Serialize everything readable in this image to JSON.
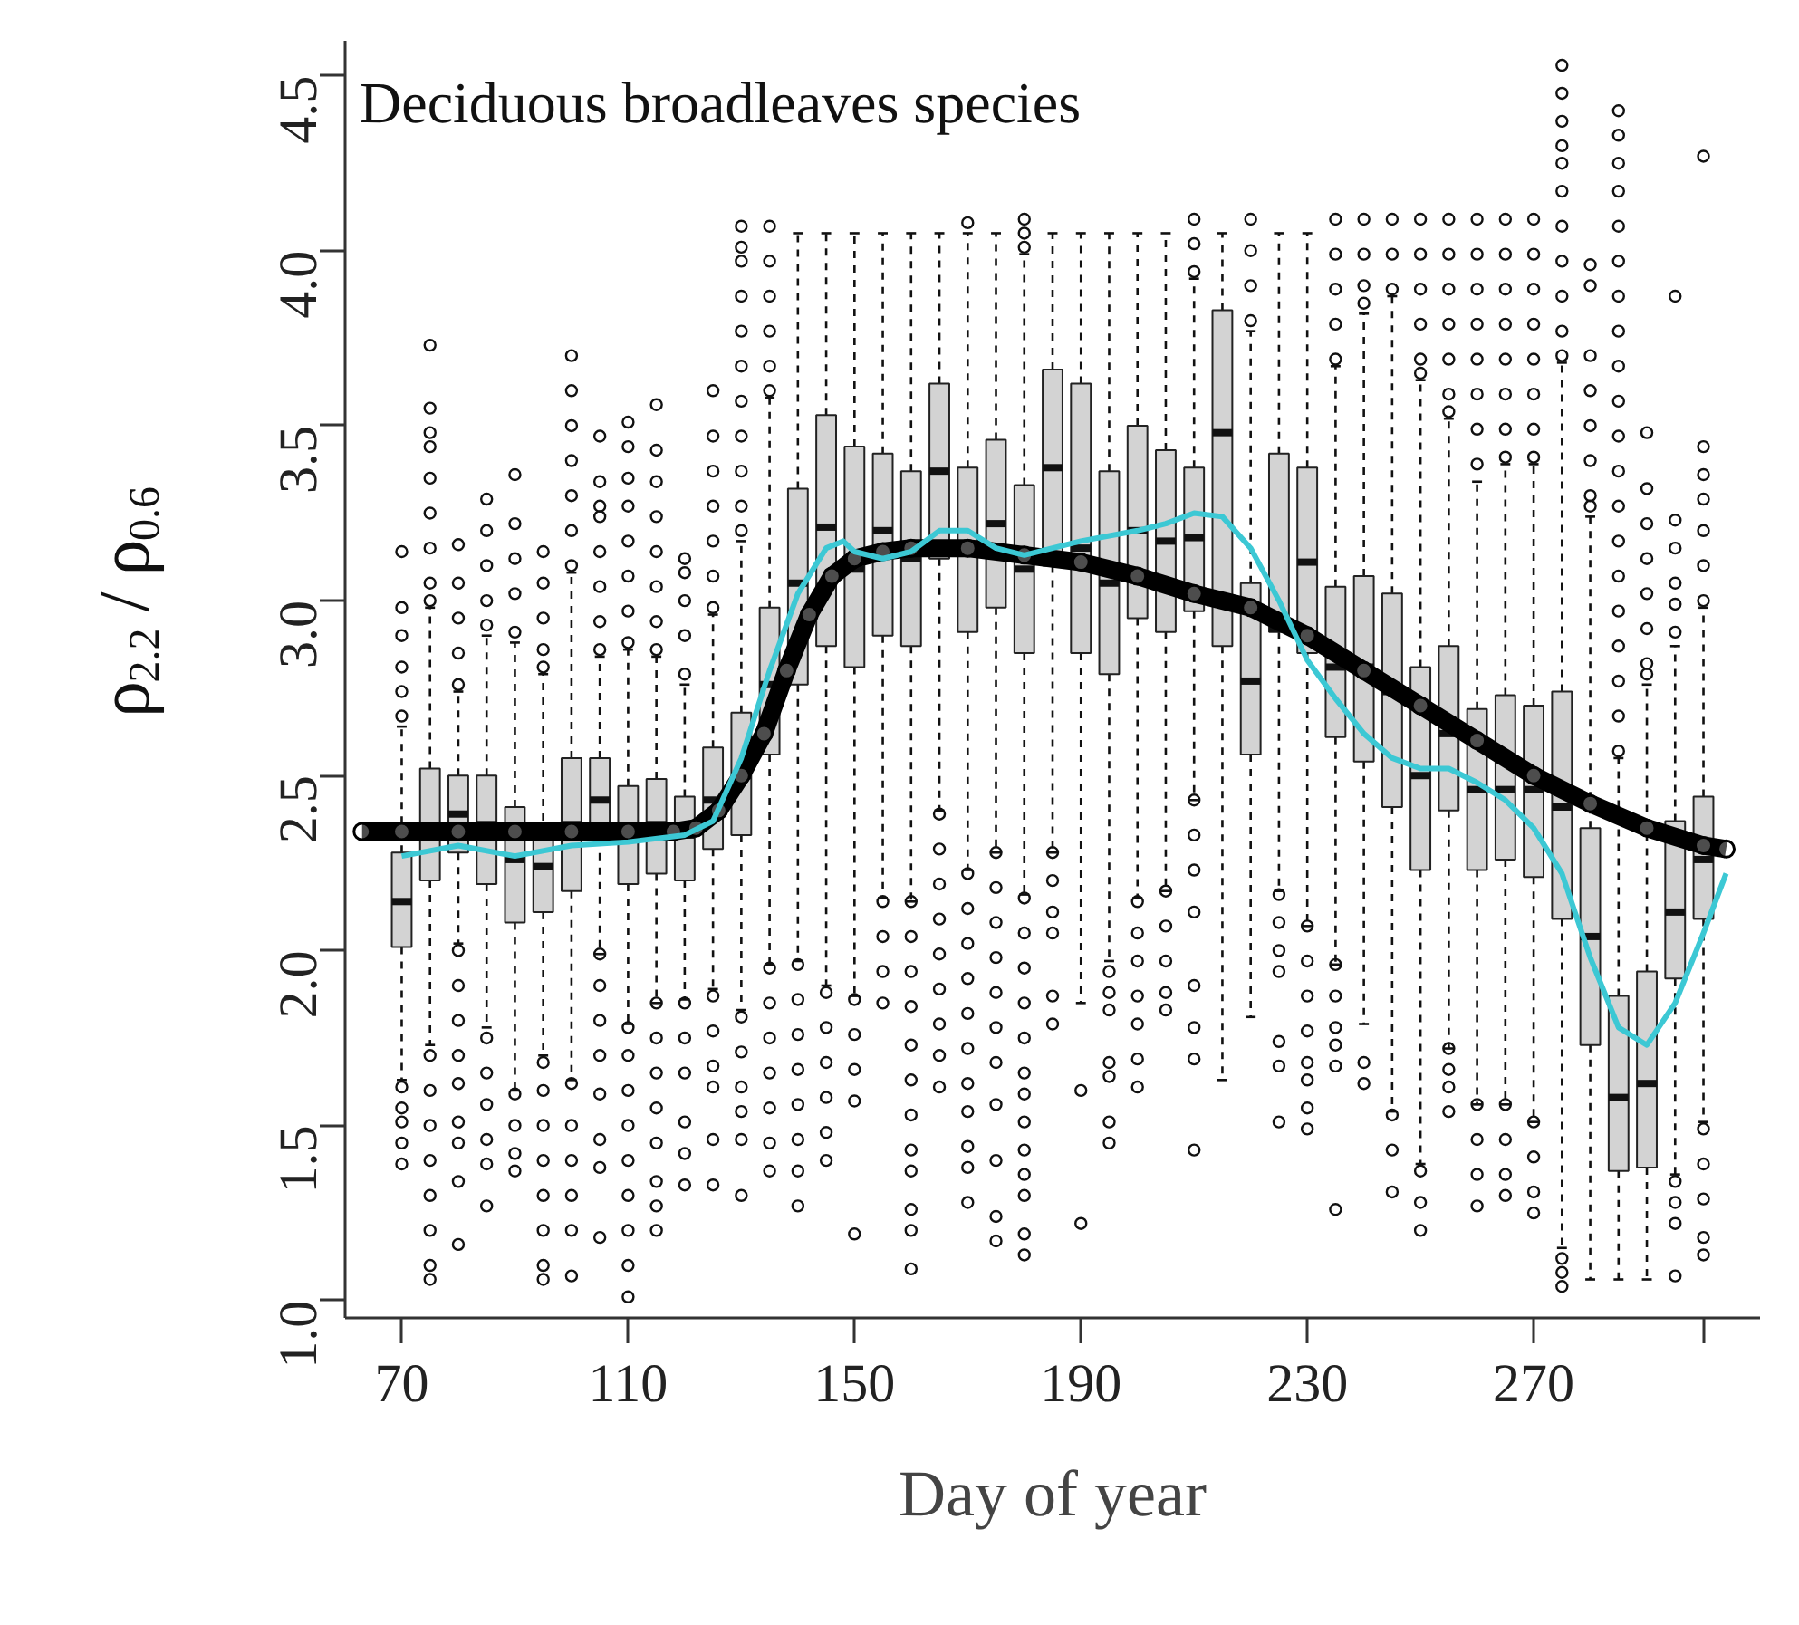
{
  "chart_data": {
    "type": "box",
    "title": "Deciduous broadleaves species",
    "xlabel": "Day of year",
    "ylabel": "ρ$_{2.2}$ / ρ$_{0.6}$",
    "xlim": [
      60,
      310
    ],
    "ylim": [
      0.95,
      4.6
    ],
    "xticks": [
      70,
      110,
      150,
      190,
      230,
      270,
      {
        "value": 300,
        "label": null
      }
    ],
    "yticks": [
      {
        "value": 1.0,
        "label": "1.0"
      },
      1.5,
      {
        "value": 2.0,
        "label": "2.0"
      },
      2.5,
      {
        "value": 3.0,
        "label": "3.0"
      },
      3.5,
      {
        "value": 4.0,
        "label": "4.0"
      },
      4.5
    ],
    "series": [
      {
        "color": "#d3d3d3",
        "x": [
          70,
          75,
          80,
          85,
          90,
          95,
          100,
          105,
          110,
          115,
          120,
          125,
          130,
          135,
          140,
          145,
          150,
          155,
          160,
          165,
          170,
          175,
          180,
          185,
          190,
          195,
          200,
          205,
          210,
          215,
          220,
          225,
          230,
          235,
          240,
          245,
          250,
          255,
          260,
          265,
          270,
          275,
          280,
          285,
          290,
          295,
          300
        ],
        "boxes": [
          {
            "low": 1.63,
            "q1": 2.01,
            "median": 2.14,
            "q3": 2.28,
            "high": 2.64,
            "outliers": [
              3.14,
              2.98,
              2.9,
              2.81,
              2.74,
              2.67,
              1.61,
              1.55,
              1.51,
              1.45,
              1.39
            ]
          },
          {
            "low": 1.73,
            "q1": 2.2,
            "median": 2.33,
            "q3": 2.52,
            "high": 2.98,
            "outliers": [
              3.73,
              3.55,
              3.48,
              3.44,
              3.35,
              3.25,
              3.15,
              3.05,
              3.0,
              1.7,
              1.6,
              1.5,
              1.4,
              1.3,
              1.2,
              1.1,
              1.06
            ]
          },
          {
            "low": 2.02,
            "q1": 2.28,
            "median": 2.39,
            "q3": 2.5,
            "high": 2.74,
            "outliers": [
              3.16,
              3.05,
              2.95,
              2.85,
              2.76,
              2.0,
              1.9,
              1.8,
              1.7,
              1.62,
              1.51,
              1.45,
              1.34,
              1.16
            ]
          },
          {
            "low": 1.78,
            "q1": 2.19,
            "median": 2.36,
            "q3": 2.5,
            "high": 2.9,
            "outliers": [
              3.29,
              3.2,
              3.1,
              3.0,
              2.93,
              1.75,
              1.65,
              1.56,
              1.46,
              1.39,
              1.27
            ]
          },
          {
            "low": 1.6,
            "q1": 2.08,
            "median": 2.26,
            "q3": 2.41,
            "high": 2.88,
            "outliers": [
              3.36,
              3.22,
              3.12,
              3.02,
              2.91,
              1.59,
              1.5,
              1.42,
              1.37
            ]
          },
          {
            "low": 1.7,
            "q1": 2.11,
            "median": 2.24,
            "q3": 2.33,
            "high": 2.79,
            "outliers": [
              3.14,
              3.05,
              2.95,
              2.86,
              2.81,
              1.68,
              1.6,
              1.5,
              1.4,
              1.3,
              1.2,
              1.1,
              1.06
            ]
          },
          {
            "low": 1.63,
            "q1": 2.17,
            "median": 2.36,
            "q3": 2.55,
            "high": 3.08,
            "outliers": [
              3.7,
              3.6,
              3.5,
              3.4,
              3.3,
              3.2,
              3.1,
              1.62,
              1.5,
              1.4,
              1.3,
              1.2,
              1.07
            ]
          },
          {
            "low": 1.99,
            "q1": 2.32,
            "median": 2.43,
            "q3": 2.55,
            "high": 2.84,
            "outliers": [
              3.47,
              3.34,
              3.27,
              3.24,
              3.14,
              3.04,
              2.94,
              2.86,
              1.99,
              1.9,
              1.8,
              1.7,
              1.59,
              1.46,
              1.38,
              1.18
            ]
          },
          {
            "low": 1.79,
            "q1": 2.19,
            "median": 2.33,
            "q3": 2.47,
            "high": 2.86,
            "outliers": [
              3.51,
              3.44,
              3.35,
              3.27,
              3.17,
              3.07,
              2.97,
              2.88,
              1.78,
              1.7,
              1.6,
              1.5,
              1.4,
              1.3,
              1.2,
              1.1,
              1.01
            ]
          },
          {
            "low": 1.85,
            "q1": 2.22,
            "median": 2.36,
            "q3": 2.49,
            "high": 2.84,
            "outliers": [
              3.56,
              3.43,
              3.34,
              3.24,
              3.14,
              3.04,
              2.94,
              2.86,
              1.85,
              1.75,
              1.65,
              1.55,
              1.45,
              1.34,
              1.27,
              1.2
            ]
          },
          {
            "low": 1.86,
            "q1": 2.2,
            "median": 2.33,
            "q3": 2.44,
            "high": 2.76,
            "outliers": [
              3.12,
              3.08,
              3.0,
              2.9,
              2.79,
              1.85,
              1.75,
              1.65,
              1.51,
              1.42,
              1.33
            ]
          },
          {
            "low": 1.89,
            "q1": 2.29,
            "median": 2.43,
            "q3": 2.58,
            "high": 2.96,
            "outliers": [
              3.6,
              3.47,
              3.37,
              3.27,
              3.17,
              3.07,
              2.98,
              1.87,
              1.77,
              1.67,
              1.61,
              1.46,
              1.33
            ]
          },
          {
            "low": 1.83,
            "q1": 2.33,
            "median": 2.5,
            "q3": 2.68,
            "high": 3.17,
            "outliers": [
              4.07,
              4.01,
              3.97,
              3.87,
              3.77,
              3.67,
              3.57,
              3.47,
              3.37,
              3.27,
              3.2,
              1.81,
              1.71,
              1.61,
              1.54,
              1.46,
              1.3
            ]
          },
          {
            "low": 1.96,
            "q1": 2.56,
            "median": 2.76,
            "q3": 2.98,
            "high": 3.58,
            "outliers": [
              4.07,
              3.97,
              3.87,
              3.77,
              3.67,
              3.6,
              1.95,
              1.85,
              1.75,
              1.65,
              1.55,
              1.45,
              1.37
            ]
          },
          {
            "low": 1.97,
            "q1": 2.76,
            "median": 3.05,
            "q3": 3.32,
            "high": 4.05,
            "outliers": [
              1.96,
              1.86,
              1.76,
              1.66,
              1.56,
              1.46,
              1.37,
              1.27
            ]
          },
          {
            "low": 1.9,
            "q1": 2.87,
            "median": 3.21,
            "q3": 3.53,
            "high": 4.05,
            "outliers": [
              1.88,
              1.78,
              1.68,
              1.58,
              1.48,
              1.4
            ]
          },
          {
            "low": 1.87,
            "q1": 2.81,
            "median": 3.09,
            "q3": 3.44,
            "high": 4.05,
            "outliers": [
              1.86,
              1.76,
              1.66,
              1.57,
              1.19
            ]
          },
          {
            "low": 2.15,
            "q1": 2.9,
            "median": 3.2,
            "q3": 3.42,
            "high": 4.05,
            "outliers": [
              2.14,
              2.04,
              1.94,
              1.85
            ]
          },
          {
            "low": 2.14,
            "q1": 2.87,
            "median": 3.12,
            "q3": 3.37,
            "high": 4.05,
            "outliers": [
              2.14,
              2.04,
              1.94,
              1.84,
              1.73,
              1.63,
              1.53,
              1.43,
              1.37,
              1.26,
              1.2,
              1.09
            ]
          },
          {
            "low": 2.4,
            "q1": 3.12,
            "median": 3.37,
            "q3": 3.62,
            "high": 4.05,
            "outliers": [
              2.39,
              2.29,
              2.19,
              2.09,
              1.99,
              1.89,
              1.79,
              1.7,
              1.61
            ]
          },
          {
            "low": 2.23,
            "q1": 2.91,
            "median": 3.15,
            "q3": 3.38,
            "high": 4.05,
            "outliers": [
              4.08,
              2.22,
              2.12,
              2.02,
              1.92,
              1.82,
              1.72,
              1.62,
              1.54,
              1.44,
              1.38,
              1.28
            ]
          },
          {
            "low": 2.28,
            "q1": 2.98,
            "median": 3.22,
            "q3": 3.46,
            "high": 4.05,
            "outliers": [
              2.28,
              2.18,
              2.08,
              1.98,
              1.88,
              1.78,
              1.68,
              1.56,
              1.4,
              1.24,
              1.17
            ]
          },
          {
            "low": 2.16,
            "q1": 2.85,
            "median": 3.09,
            "q3": 3.33,
            "high": 3.99,
            "outliers": [
              4.09,
              4.05,
              4.01,
              2.15,
              2.05,
              1.95,
              1.85,
              1.75,
              1.65,
              1.59,
              1.51,
              1.43,
              1.36,
              1.3,
              1.19,
              1.13
            ]
          },
          {
            "low": 2.28,
            "q1": 3.1,
            "median": 3.38,
            "q3": 3.66,
            "high": 4.05,
            "outliers": [
              2.28,
              2.2,
              2.11,
              2.05,
              1.87,
              1.79
            ]
          },
          {
            "low": 1.85,
            "q1": 2.85,
            "median": 3.15,
            "q3": 3.62,
            "high": 4.05,
            "outliers": [
              1.6,
              1.22
            ]
          },
          {
            "low": 1.97,
            "q1": 2.79,
            "median": 3.05,
            "q3": 3.37,
            "high": 4.05,
            "outliers": [
              1.94,
              1.88,
              1.83,
              1.68,
              1.64,
              1.51,
              1.45
            ]
          },
          {
            "low": 2.15,
            "q1": 2.95,
            "median": 3.2,
            "q3": 3.5,
            "high": 4.05,
            "outliers": [
              2.14,
              2.05,
              1.97,
              1.87,
              1.79,
              1.69,
              1.61
            ]
          },
          {
            "low": 2.17,
            "q1": 2.91,
            "median": 3.17,
            "q3": 3.43,
            "high": 4.05,
            "outliers": [
              2.17,
              2.07,
              1.97,
              1.88,
              1.83
            ]
          },
          {
            "low": 2.43,
            "q1": 2.97,
            "median": 3.18,
            "q3": 3.38,
            "high": 3.92,
            "outliers": [
              4.09,
              4.02,
              3.94,
              2.43,
              2.33,
              2.23,
              2.11,
              1.9,
              1.78,
              1.69,
              1.43
            ]
          },
          {
            "low": 1.63,
            "q1": 2.87,
            "median": 3.48,
            "q3": 3.83,
            "high": 4.05
          },
          {
            "low": 1.81,
            "q1": 2.56,
            "median": 2.77,
            "q3": 3.05,
            "high": 3.77,
            "outliers": [
              4.09,
              4.0,
              3.9,
              3.8
            ]
          },
          {
            "low": 2.17,
            "q1": 2.91,
            "median": 2.92,
            "q3": 3.42,
            "high": 4.05,
            "outliers": [
              2.16,
              2.08,
              2.0,
              1.94,
              1.74,
              1.67,
              1.51
            ]
          },
          {
            "low": 2.07,
            "q1": 2.85,
            "median": 3.11,
            "q3": 3.38,
            "high": 4.05,
            "outliers": [
              2.07,
              1.97,
              1.87,
              1.77,
              1.68,
              1.63,
              1.55,
              1.49
            ]
          },
          {
            "low": 1.96,
            "q1": 2.61,
            "median": 2.81,
            "q3": 3.04,
            "high": 3.67,
            "outliers": [
              4.09,
              3.99,
              3.89,
              3.79,
              3.69,
              1.96,
              1.87,
              1.78,
              1.73,
              1.67,
              1.26
            ]
          },
          {
            "low": 1.79,
            "q1": 2.54,
            "median": 2.81,
            "q3": 3.07,
            "high": 3.82,
            "outliers": [
              4.09,
              3.99,
              3.9,
              3.85,
              1.68,
              1.62
            ]
          },
          {
            "low": 1.54,
            "q1": 2.41,
            "median": 2.74,
            "q3": 3.02,
            "high": 3.87,
            "outliers": [
              4.09,
              3.99,
              3.89,
              1.53,
              1.43,
              1.31
            ]
          },
          {
            "low": 1.39,
            "q1": 2.23,
            "median": 2.5,
            "q3": 2.81,
            "high": 3.63,
            "outliers": [
              4.09,
              3.99,
              3.89,
              3.79,
              3.69,
              3.65,
              1.37,
              1.28,
              1.2
            ]
          },
          {
            "low": 1.72,
            "q1": 2.4,
            "median": 2.62,
            "q3": 2.87,
            "high": 3.52,
            "outliers": [
              4.09,
              3.99,
              3.89,
              3.79,
              3.69,
              3.59,
              3.54,
              1.72,
              1.66,
              1.61,
              1.54
            ]
          },
          {
            "low": 1.56,
            "q1": 2.23,
            "median": 2.46,
            "q3": 2.69,
            "high": 3.34,
            "outliers": [
              4.09,
              3.99,
              3.89,
              3.79,
              3.69,
              3.59,
              3.49,
              3.39,
              1.56,
              1.46,
              1.36,
              1.27
            ]
          },
          {
            "low": 1.56,
            "q1": 2.26,
            "median": 2.46,
            "q3": 2.73,
            "high": 3.39,
            "outliers": [
              4.09,
              3.99,
              3.89,
              3.79,
              3.69,
              3.59,
              3.49,
              3.41,
              1.56,
              1.46,
              1.36,
              1.3
            ]
          },
          {
            "low": 1.51,
            "q1": 2.21,
            "median": 2.46,
            "q3": 2.7,
            "high": 3.39,
            "outliers": [
              4.09,
              3.99,
              3.89,
              3.79,
              3.69,
              3.59,
              3.49,
              3.41,
              1.51,
              1.41,
              1.31,
              1.25
            ]
          },
          {
            "low": 1.15,
            "q1": 2.09,
            "median": 2.41,
            "q3": 2.74,
            "high": 3.68,
            "outliers": [
              4.53,
              4.45,
              4.37,
              4.3,
              4.25,
              4.17,
              4.07,
              3.97,
              3.87,
              3.77,
              3.7,
              1.12,
              1.08,
              1.04
            ]
          },
          {
            "low": 1.06,
            "q1": 1.73,
            "median": 2.04,
            "q3": 2.35,
            "high": 3.24,
            "outliers": [
              3.96,
              3.9,
              3.7,
              3.6,
              3.5,
              3.4,
              3.3,
              3.27
            ]
          },
          {
            "low": 1.06,
            "q1": 1.37,
            "median": 1.58,
            "q3": 1.87,
            "high": 2.55,
            "outliers": [
              4.4,
              4.33,
              4.25,
              4.17,
              4.07,
              3.97,
              3.87,
              3.77,
              3.67,
              3.57,
              3.47,
              3.37,
              3.27,
              3.17,
              3.07,
              2.97,
              2.87,
              2.77,
              2.67,
              2.57
            ]
          },
          {
            "low": 1.06,
            "q1": 1.38,
            "median": 1.62,
            "q3": 1.94,
            "high": 2.76,
            "outliers": [
              3.48,
              3.32,
              3.22,
              3.12,
              3.02,
              2.92,
              2.82,
              2.79
            ]
          },
          {
            "low": 1.36,
            "q1": 1.92,
            "median": 2.11,
            "q3": 2.37,
            "high": 2.87,
            "outliers": [
              3.87,
              3.23,
              3.15,
              3.05,
              2.99,
              2.91,
              1.34,
              1.28,
              1.22,
              1.07
            ]
          },
          {
            "low": 1.51,
            "q1": 2.09,
            "median": 2.26,
            "q3": 2.44,
            "high": 2.98,
            "outliers": [
              4.27,
              3.44,
              3.36,
              3.29,
              3.2,
              3.1,
              3.0,
              1.49,
              1.39,
              1.29,
              1.18,
              1.13
            ]
          }
        ]
      },
      {
        "type": "line",
        "color": "#000000",
        "marker": "circle",
        "x": [
          63,
          70,
          80,
          90,
          100,
          110,
          118,
          122,
          126,
          130,
          134,
          138,
          142,
          146,
          150,
          155,
          160,
          170,
          180,
          190,
          200,
          210,
          220,
          230,
          240,
          250,
          260,
          270,
          280,
          290,
          300,
          304
        ],
        "values": [
          2.34,
          2.34,
          2.34,
          2.34,
          2.34,
          2.34,
          2.34,
          2.35,
          2.4,
          2.5,
          2.62,
          2.8,
          2.96,
          3.07,
          3.12,
          3.14,
          3.15,
          3.15,
          3.13,
          3.11,
          3.07,
          3.02,
          2.98,
          2.9,
          2.8,
          2.7,
          2.6,
          2.5,
          2.42,
          2.35,
          2.3,
          2.29
        ]
      },
      {
        "type": "line",
        "color": "#3cc8d4",
        "x": [
          70,
          80,
          90,
          100,
          110,
          120,
          125,
          130,
          135,
          140,
          145,
          148,
          150,
          155,
          160,
          165,
          170,
          175,
          180,
          190,
          200,
          205,
          210,
          215,
          220,
          225,
          230,
          235,
          240,
          245,
          250,
          255,
          260,
          265,
          270,
          275,
          280,
          285,
          290,
          295,
          300,
          304
        ],
        "values": [
          2.27,
          2.3,
          2.27,
          2.3,
          2.31,
          2.33,
          2.37,
          2.55,
          2.8,
          3.02,
          3.15,
          3.17,
          3.14,
          3.12,
          3.14,
          3.2,
          3.2,
          3.15,
          3.13,
          3.17,
          3.2,
          3.22,
          3.25,
          3.24,
          3.15,
          3.0,
          2.83,
          2.72,
          2.62,
          2.55,
          2.52,
          2.52,
          2.48,
          2.43,
          2.35,
          2.22,
          1.98,
          1.78,
          1.73,
          1.85,
          2.05,
          2.22
        ]
      }
    ]
  }
}
